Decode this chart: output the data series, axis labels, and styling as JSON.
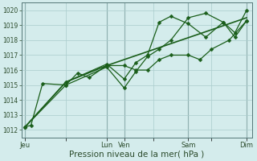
{
  "bg_color": "#d4ecec",
  "grid_color": "#aacccc",
  "line_color": "#1a5e1a",
  "xlabel": "Pression niveau de la mer( hPa )",
  "xlabel_fontsize": 7.5,
  "ylim": [
    1011.5,
    1020.5
  ],
  "yticks": [
    1012,
    1013,
    1014,
    1015,
    1016,
    1017,
    1018,
    1019,
    1020
  ],
  "xtick_labels": [
    "Jeu",
    "",
    "Lun",
    "Ven",
    "",
    "Sam",
    "",
    "Dim"
  ],
  "xtick_pos": [
    0,
    3.5,
    7,
    8.5,
    11,
    14,
    16,
    19
  ],
  "vline_pos": [
    0,
    7,
    8.5,
    14,
    19
  ],
  "series1_x": [
    0,
    0.5,
    1.5,
    3.5,
    4.5,
    5.5,
    7.0,
    8.5,
    9.5,
    10.5,
    11.5,
    12.5,
    14.0,
    15.0,
    16.0,
    17.5,
    19.0
  ],
  "series1_y": [
    1012.2,
    1012.3,
    1015.1,
    1015.0,
    1015.8,
    1015.5,
    1016.3,
    1016.3,
    1016.0,
    1016.0,
    1016.7,
    1017.0,
    1017.0,
    1016.7,
    1017.4,
    1018.0,
    1019.3
  ],
  "series2_x": [
    0,
    3.5,
    7.0,
    8.5,
    9.5,
    10.5,
    11.5,
    12.5,
    14.0,
    15.5,
    17.0,
    18.0,
    19.0
  ],
  "series2_y": [
    1012.2,
    1015.0,
    1016.2,
    1014.8,
    1015.9,
    1016.9,
    1017.4,
    1018.0,
    1019.5,
    1019.8,
    1019.2,
    1018.5,
    1020.0
  ],
  "series3_x": [
    0,
    3.5,
    7.0,
    8.5,
    9.5,
    10.5,
    11.5,
    12.5,
    14.0,
    15.5,
    17.0,
    18.0,
    19.0
  ],
  "series3_y": [
    1012.2,
    1015.2,
    1016.4,
    1015.4,
    1016.5,
    1017.0,
    1019.2,
    1019.6,
    1019.1,
    1018.2,
    1019.2,
    1018.2,
    1019.3
  ],
  "series4_x": [
    0,
    3.5,
    7.0,
    19.0
  ],
  "series4_y": [
    1012.2,
    1015.2,
    1016.3,
    1019.5
  ],
  "xlim": [
    -0.3,
    19.5
  ]
}
